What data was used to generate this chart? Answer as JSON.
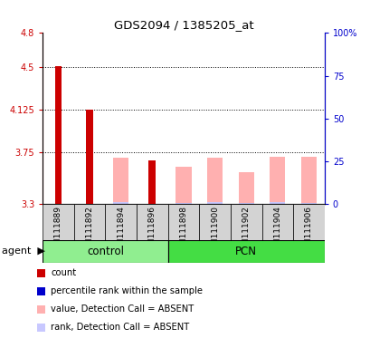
{
  "title": "GDS2094 / 1385205_at",
  "samples": [
    "GSM111889",
    "GSM111892",
    "GSM111894",
    "GSM111896",
    "GSM111898",
    "GSM111900",
    "GSM111902",
    "GSM111904",
    "GSM111906"
  ],
  "control_indices": [
    0,
    1,
    2,
    3
  ],
  "pcn_indices": [
    4,
    5,
    6,
    7,
    8
  ],
  "ylim": [
    3.3,
    4.8
  ],
  "yticks_left": [
    3.3,
    3.75,
    4.125,
    4.5,
    4.8
  ],
  "yticks_right_vals": [
    0,
    25,
    50,
    75,
    100
  ],
  "dotted_lines": [
    3.75,
    4.125,
    4.5
  ],
  "count_color": "#CC0000",
  "rank_color": "#0000CC",
  "absent_value_color": "#FFB0B0",
  "absent_rank_color": "#C8C8FF",
  "count_values": [
    4.505,
    4.125,
    null,
    3.68,
    null,
    null,
    null,
    null,
    null
  ],
  "rank_values": [
    3.355,
    3.34,
    null,
    3.325,
    null,
    null,
    null,
    null,
    null
  ],
  "absent_value": [
    null,
    null,
    3.705,
    null,
    3.62,
    3.705,
    3.575,
    3.71,
    3.71
  ],
  "absent_rank": [
    null,
    null,
    3.31,
    null,
    3.305,
    3.31,
    3.305,
    3.31,
    3.305
  ],
  "bar_width": 0.5,
  "base": 3.3,
  "control_color": "#90EE90",
  "pcn_color": "#44DD44",
  "left_axis_color": "#CC0000",
  "right_axis_color": "#0000CC",
  "legend_items": [
    {
      "color": "#CC0000",
      "label": "count"
    },
    {
      "color": "#0000CC",
      "label": "percentile rank within the sample"
    },
    {
      "color": "#FFB0B0",
      "label": "value, Detection Call = ABSENT"
    },
    {
      "color": "#C8C8FF",
      "label": "rank, Detection Call = ABSENT"
    }
  ],
  "cell_color": "#D3D3D3",
  "background": "#FFFFFF"
}
